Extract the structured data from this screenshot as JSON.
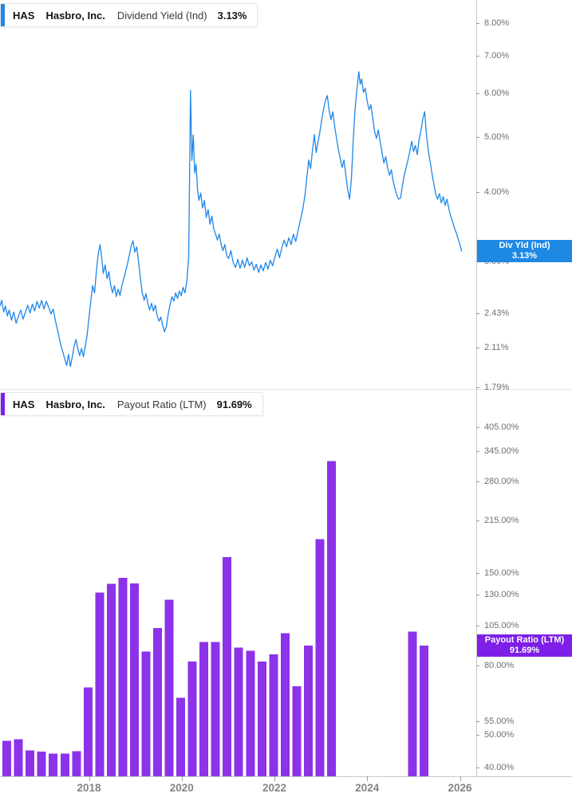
{
  "panels": {
    "top": {
      "legend": {
        "ticker": "HAS",
        "company": "Hasbro, Inc.",
        "metric": "Dividend Yield (Ind)",
        "value": "3.13%"
      },
      "badge": {
        "line1": "Div Yld (Ind)",
        "line2": "3.13%",
        "color": "#1E88E5"
      },
      "accent_color": "#1E88E5"
    },
    "bottom": {
      "legend": {
        "ticker": "HAS",
        "company": "Hasbro, Inc.",
        "metric": "Payout Ratio (LTM)",
        "value": "91.69%"
      },
      "badge": {
        "line1": "Payout Ratio (LTM)",
        "line2": "91.69%",
        "color": "#7D1FE7"
      },
      "accent_color": "#7D1FE7"
    }
  },
  "x_axis": {
    "ticks": [
      {
        "label": "2018",
        "t": 2018
      },
      {
        "label": "2020",
        "t": 2020
      },
      {
        "label": "2022",
        "t": 2022
      },
      {
        "label": "2024",
        "t": 2024
      },
      {
        "label": "2026",
        "t": 2026
      }
    ]
  },
  "chart_data": [
    {
      "type": "line",
      "title": "HAS Hasbro, Inc. Dividend Yield (Ind)",
      "unit": "%",
      "color": "#1F86E8",
      "y_scale": "log",
      "x_range": [
        2016.08,
        2026.35
      ],
      "last_value": 3.13,
      "y_ticks": [
        {
          "label": "8.00%",
          "v": 8
        },
        {
          "label": "7.00%",
          "v": 7
        },
        {
          "label": "6.00%",
          "v": 6
        },
        {
          "label": "5.00%",
          "v": 5
        },
        {
          "label": "4.00%",
          "v": 4
        },
        {
          "label": "3.00%",
          "v": 3
        },
        {
          "label": "2.43%",
          "v": 2.43
        },
        {
          "label": "2.11%",
          "v": 2.11
        },
        {
          "label": "1.79%",
          "v": 1.79
        }
      ],
      "points": [
        [
          2016.08,
          2.5
        ],
        [
          2016.12,
          2.56
        ],
        [
          2016.16,
          2.44
        ],
        [
          2016.2,
          2.5
        ],
        [
          2016.24,
          2.4
        ],
        [
          2016.28,
          2.46
        ],
        [
          2016.33,
          2.36
        ],
        [
          2016.38,
          2.44
        ],
        [
          2016.43,
          2.33
        ],
        [
          2016.48,
          2.4
        ],
        [
          2016.53,
          2.46
        ],
        [
          2016.58,
          2.37
        ],
        [
          2016.63,
          2.44
        ],
        [
          2016.68,
          2.51
        ],
        [
          2016.73,
          2.43
        ],
        [
          2016.78,
          2.52
        ],
        [
          2016.83,
          2.45
        ],
        [
          2016.88,
          2.55
        ],
        [
          2016.93,
          2.48
        ],
        [
          2016.98,
          2.56
        ],
        [
          2017.03,
          2.47
        ],
        [
          2017.08,
          2.55
        ],
        [
          2017.13,
          2.49
        ],
        [
          2017.18,
          2.42
        ],
        [
          2017.23,
          2.47
        ],
        [
          2017.28,
          2.35
        ],
        [
          2017.33,
          2.25
        ],
        [
          2017.38,
          2.15
        ],
        [
          2017.43,
          2.08
        ],
        [
          2017.48,
          2.01
        ],
        [
          2017.52,
          1.96
        ],
        [
          2017.56,
          2.05
        ],
        [
          2017.6,
          1.95
        ],
        [
          2017.64,
          2.03
        ],
        [
          2017.68,
          2.12
        ],
        [
          2017.72,
          2.18
        ],
        [
          2017.76,
          2.1
        ],
        [
          2017.8,
          2.04
        ],
        [
          2017.84,
          2.1
        ],
        [
          2017.88,
          2.03
        ],
        [
          2017.92,
          2.12
        ],
        [
          2017.96,
          2.22
        ],
        [
          2018.0,
          2.38
        ],
        [
          2018.04,
          2.55
        ],
        [
          2018.08,
          2.72
        ],
        [
          2018.12,
          2.64
        ],
        [
          2018.16,
          2.88
        ],
        [
          2018.2,
          3.1
        ],
        [
          2018.24,
          3.22
        ],
        [
          2018.28,
          3.02
        ],
        [
          2018.31,
          2.86
        ],
        [
          2018.35,
          2.96
        ],
        [
          2018.39,
          2.8
        ],
        [
          2018.43,
          2.88
        ],
        [
          2018.47,
          2.72
        ],
        [
          2018.51,
          2.64
        ],
        [
          2018.55,
          2.72
        ],
        [
          2018.59,
          2.6
        ],
        [
          2018.63,
          2.68
        ],
        [
          2018.67,
          2.61
        ],
        [
          2018.71,
          2.72
        ],
        [
          2018.75,
          2.8
        ],
        [
          2018.79,
          2.88
        ],
        [
          2018.83,
          2.97
        ],
        [
          2018.87,
          3.08
        ],
        [
          2018.91,
          3.2
        ],
        [
          2018.95,
          3.27
        ],
        [
          2018.99,
          3.12
        ],
        [
          2019.03,
          3.19
        ],
        [
          2019.07,
          3.0
        ],
        [
          2019.11,
          2.8
        ],
        [
          2019.15,
          2.64
        ],
        [
          2019.19,
          2.56
        ],
        [
          2019.23,
          2.63
        ],
        [
          2019.27,
          2.53
        ],
        [
          2019.31,
          2.46
        ],
        [
          2019.35,
          2.53
        ],
        [
          2019.39,
          2.45
        ],
        [
          2019.43,
          2.51
        ],
        [
          2019.47,
          2.41
        ],
        [
          2019.51,
          2.35
        ],
        [
          2019.55,
          2.39
        ],
        [
          2019.59,
          2.31
        ],
        [
          2019.63,
          2.25
        ],
        [
          2019.67,
          2.3
        ],
        [
          2019.71,
          2.42
        ],
        [
          2019.75,
          2.52
        ],
        [
          2019.79,
          2.6
        ],
        [
          2019.83,
          2.55
        ],
        [
          2019.87,
          2.64
        ],
        [
          2019.91,
          2.58
        ],
        [
          2019.95,
          2.66
        ],
        [
          2019.99,
          2.61
        ],
        [
          2020.03,
          2.7
        ],
        [
          2020.07,
          2.64
        ],
        [
          2020.11,
          2.76
        ],
        [
          2020.15,
          3.05
        ],
        [
          2020.19,
          6.07
        ],
        [
          2020.22,
          4.55
        ],
        [
          2020.25,
          5.05
        ],
        [
          2020.28,
          4.32
        ],
        [
          2020.31,
          4.48
        ],
        [
          2020.34,
          4.05
        ],
        [
          2020.37,
          3.86
        ],
        [
          2020.41,
          3.98
        ],
        [
          2020.45,
          3.74
        ],
        [
          2020.49,
          3.86
        ],
        [
          2020.53,
          3.6
        ],
        [
          2020.57,
          3.72
        ],
        [
          2020.61,
          3.5
        ],
        [
          2020.65,
          3.62
        ],
        [
          2020.69,
          3.44
        ],
        [
          2020.73,
          3.36
        ],
        [
          2020.77,
          3.28
        ],
        [
          2020.81,
          3.36
        ],
        [
          2020.85,
          3.22
        ],
        [
          2020.89,
          3.14
        ],
        [
          2020.93,
          3.22
        ],
        [
          2020.97,
          3.08
        ],
        [
          2021.01,
          3.04
        ],
        [
          2021.06,
          3.14
        ],
        [
          2021.11,
          2.99
        ],
        [
          2021.16,
          2.93
        ],
        [
          2021.21,
          3.03
        ],
        [
          2021.26,
          2.92
        ],
        [
          2021.31,
          3.02
        ],
        [
          2021.36,
          2.93
        ],
        [
          2021.41,
          3.05
        ],
        [
          2021.46,
          2.95
        ],
        [
          2021.51,
          3.0
        ],
        [
          2021.56,
          2.9
        ],
        [
          2021.61,
          2.97
        ],
        [
          2021.66,
          2.87
        ],
        [
          2021.71,
          2.96
        ],
        [
          2021.76,
          2.89
        ],
        [
          2021.81,
          2.99
        ],
        [
          2021.86,
          2.91
        ],
        [
          2021.91,
          3.02
        ],
        [
          2021.96,
          2.95
        ],
        [
          2022.01,
          3.06
        ],
        [
          2022.06,
          3.16
        ],
        [
          2022.11,
          3.05
        ],
        [
          2022.16,
          3.18
        ],
        [
          2022.21,
          3.28
        ],
        [
          2022.26,
          3.19
        ],
        [
          2022.31,
          3.31
        ],
        [
          2022.36,
          3.22
        ],
        [
          2022.41,
          3.36
        ],
        [
          2022.46,
          3.26
        ],
        [
          2022.51,
          3.41
        ],
        [
          2022.56,
          3.56
        ],
        [
          2022.61,
          3.72
        ],
        [
          2022.66,
          3.95
        ],
        [
          2022.7,
          4.26
        ],
        [
          2022.74,
          4.56
        ],
        [
          2022.78,
          4.4
        ],
        [
          2022.82,
          4.74
        ],
        [
          2022.86,
          5.06
        ],
        [
          2022.9,
          4.7
        ],
        [
          2022.94,
          4.9
        ],
        [
          2022.98,
          5.12
        ],
        [
          2023.02,
          5.38
        ],
        [
          2023.06,
          5.62
        ],
        [
          2023.1,
          5.82
        ],
        [
          2023.14,
          5.94
        ],
        [
          2023.18,
          5.58
        ],
        [
          2023.22,
          5.38
        ],
        [
          2023.26,
          5.56
        ],
        [
          2023.3,
          5.22
        ],
        [
          2023.34,
          4.98
        ],
        [
          2023.38,
          4.76
        ],
        [
          2023.42,
          4.58
        ],
        [
          2023.46,
          4.42
        ],
        [
          2023.5,
          4.56
        ],
        [
          2023.54,
          4.28
        ],
        [
          2023.58,
          4.04
        ],
        [
          2023.62,
          3.88
        ],
        [
          2023.66,
          4.22
        ],
        [
          2023.7,
          4.95
        ],
        [
          2023.74,
          5.62
        ],
        [
          2023.78,
          6.12
        ],
        [
          2023.82,
          6.55
        ],
        [
          2023.85,
          6.22
        ],
        [
          2023.88,
          6.36
        ],
        [
          2023.92,
          6.02
        ],
        [
          2023.96,
          6.12
        ],
        [
          2024.0,
          5.8
        ],
        [
          2024.04,
          5.6
        ],
        [
          2024.08,
          5.72
        ],
        [
          2024.12,
          5.42
        ],
        [
          2024.16,
          5.12
        ],
        [
          2024.2,
          4.98
        ],
        [
          2024.24,
          5.16
        ],
        [
          2024.28,
          4.92
        ],
        [
          2024.32,
          4.7
        ],
        [
          2024.36,
          4.5
        ],
        [
          2024.4,
          4.62
        ],
        [
          2024.44,
          4.42
        ],
        [
          2024.48,
          4.28
        ],
        [
          2024.52,
          4.38
        ],
        [
          2024.56,
          4.18
        ],
        [
          2024.6,
          4.05
        ],
        [
          2024.64,
          3.94
        ],
        [
          2024.68,
          3.88
        ],
        [
          2024.72,
          3.9
        ],
        [
          2024.76,
          4.1
        ],
        [
          2024.8,
          4.28
        ],
        [
          2024.84,
          4.42
        ],
        [
          2024.88,
          4.56
        ],
        [
          2024.92,
          4.72
        ],
        [
          2024.96,
          4.92
        ],
        [
          2025.0,
          4.72
        ],
        [
          2025.04,
          4.84
        ],
        [
          2025.08,
          4.66
        ],
        [
          2025.12,
          4.95
        ],
        [
          2025.16,
          5.15
        ],
        [
          2025.2,
          5.4
        ],
        [
          2025.24,
          5.56
        ],
        [
          2025.28,
          5.05
        ],
        [
          2025.32,
          4.72
        ],
        [
          2025.36,
          4.52
        ],
        [
          2025.4,
          4.3
        ],
        [
          2025.44,
          4.12
        ],
        [
          2025.48,
          3.95
        ],
        [
          2025.52,
          3.88
        ],
        [
          2025.56,
          3.97
        ],
        [
          2025.6,
          3.82
        ],
        [
          2025.64,
          3.92
        ],
        [
          2025.68,
          3.78
        ],
        [
          2025.72,
          3.88
        ],
        [
          2025.76,
          3.74
        ],
        [
          2025.8,
          3.62
        ],
        [
          2025.84,
          3.54
        ],
        [
          2025.88,
          3.45
        ],
        [
          2025.92,
          3.38
        ],
        [
          2025.96,
          3.3
        ],
        [
          2026.0,
          3.22
        ],
        [
          2026.04,
          3.13
        ]
      ]
    },
    {
      "type": "bar",
      "title": "HAS Hasbro, Inc. Payout Ratio (LTM)",
      "unit": "%",
      "color": "#8C32E9",
      "y_scale": "log",
      "last_value": 91.69,
      "y_ticks": [
        {
          "label": "405.00%",
          "v": 405
        },
        {
          "label": "345.00%",
          "v": 345
        },
        {
          "label": "280.00%",
          "v": 280
        },
        {
          "label": "215.00%",
          "v": 215
        },
        {
          "label": "150.00%",
          "v": 150
        },
        {
          "label": "130.00%",
          "v": 130
        },
        {
          "label": "105.00%",
          "v": 105
        },
        {
          "label": "80.00%",
          "v": 80
        },
        {
          "label": "55.00%",
          "v": 55
        },
        {
          "label": "50.00%",
          "v": 50
        },
        {
          "label": "40.00%",
          "v": 40
        }
      ],
      "bars": [
        {
          "period": "Q1 2016",
          "t": 2016.23,
          "v": 48.1
        },
        {
          "period": "Q2 2016",
          "t": 2016.48,
          "v": 48.5
        },
        {
          "period": "Q3 2016",
          "t": 2016.73,
          "v": 45.0
        },
        {
          "period": "Q4 2016",
          "t": 2016.98,
          "v": 44.7
        },
        {
          "period": "Q1 2017",
          "t": 2017.23,
          "v": 44.0
        },
        {
          "period": "Q2 2017",
          "t": 2017.48,
          "v": 44.0
        },
        {
          "period": "Q3 2017",
          "t": 2017.73,
          "v": 44.8
        },
        {
          "period": "Q4 2017",
          "t": 2017.98,
          "v": 69.1
        },
        {
          "period": "Q1 2018",
          "t": 2018.23,
          "v": 131.7
        },
        {
          "period": "Q2 2018",
          "t": 2018.48,
          "v": 139.8
        },
        {
          "period": "Q3 2018",
          "t": 2018.73,
          "v": 145.5
        },
        {
          "period": "Q4 2018",
          "t": 2018.98,
          "v": 140.0
        },
        {
          "period": "Q1 2019",
          "t": 2019.23,
          "v": 88.2
        },
        {
          "period": "Q2 2019",
          "t": 2019.48,
          "v": 103.4
        },
        {
          "period": "Q3 2019",
          "t": 2019.73,
          "v": 125.4
        },
        {
          "period": "Q4 2019",
          "t": 2019.98,
          "v": 64.3
        },
        {
          "period": "Q1 2020",
          "t": 2020.23,
          "v": 82.3
        },
        {
          "period": "Q2 2020",
          "t": 2020.48,
          "v": 94.1
        },
        {
          "period": "Q3 2020",
          "t": 2020.73,
          "v": 94.0
        },
        {
          "period": "Q4 2020",
          "t": 2020.98,
          "v": 167.4
        },
        {
          "period": "Q1 2021",
          "t": 2021.23,
          "v": 90.6
        },
        {
          "period": "Q2 2021",
          "t": 2021.48,
          "v": 88.5
        },
        {
          "period": "Q3 2021",
          "t": 2021.73,
          "v": 82.3
        },
        {
          "period": "Q4 2021",
          "t": 2021.98,
          "v": 86.5
        },
        {
          "period": "Q1 2022",
          "t": 2022.23,
          "v": 99.9
        },
        {
          "period": "Q2 2022",
          "t": 2022.48,
          "v": 69.6
        },
        {
          "period": "Q3 2022",
          "t": 2022.73,
          "v": 91.8
        },
        {
          "period": "Q4 2022",
          "t": 2022.98,
          "v": 189.0
        },
        {
          "period": "Q1 2023",
          "t": 2023.23,
          "v": 322.0
        },
        {
          "period": "Q2 2023",
          "t": 2023.48,
          "v": null
        },
        {
          "period": "Q3 2023",
          "t": 2023.73,
          "v": null
        },
        {
          "period": "Q4 2023",
          "t": 2023.98,
          "v": null
        },
        {
          "period": "Q1 2024",
          "t": 2024.23,
          "v": null
        },
        {
          "period": "Q2 2024",
          "t": 2024.48,
          "v": null
        },
        {
          "period": "Q3 2024",
          "t": 2024.73,
          "v": null
        },
        {
          "period": "Q4 2024",
          "t": 2024.98,
          "v": 100.8
        },
        {
          "period": "Q1 2025",
          "t": 2025.23,
          "v": 91.69
        }
      ]
    }
  ]
}
